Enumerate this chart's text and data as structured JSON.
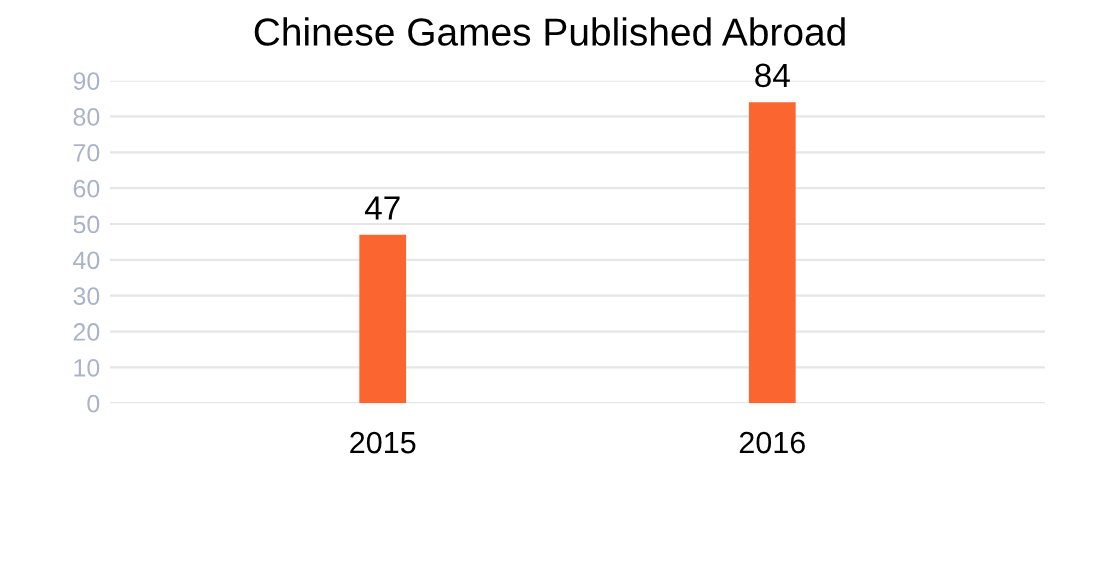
{
  "chart_data": {
    "type": "bar",
    "title": "Chinese Games Published Abroad",
    "categories": [
      "2015",
      "2016"
    ],
    "values": [
      47,
      84
    ],
    "color": "#fb6530",
    "ylim": [
      0,
      90
    ],
    "yticks": [
      0,
      10,
      20,
      30,
      40,
      50,
      60,
      70,
      80,
      90
    ],
    "grid": "y",
    "data_labels": true
  }
}
